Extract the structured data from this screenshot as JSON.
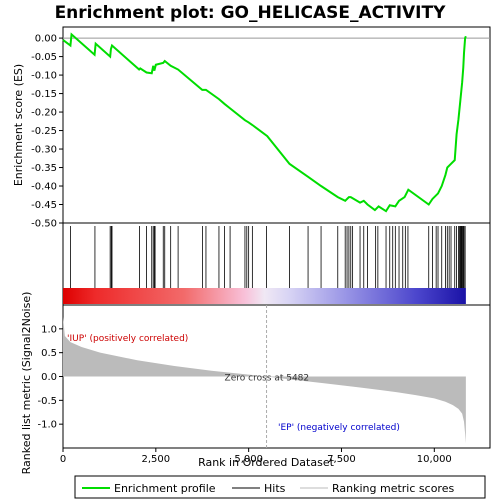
{
  "chart_data": {
    "type": "line",
    "title": "Enrichment plot: GO_HELICASE_ACTIVITY",
    "panels": {
      "enrichment": {
        "ylabel": "Enrichment score (ES)",
        "ylim": [
          -0.5,
          0.03
        ],
        "yticks": [
          0.0,
          -0.05,
          -0.1,
          -0.15,
          -0.2,
          -0.25,
          -0.3,
          -0.35,
          -0.4,
          -0.45,
          -0.5
        ],
        "ytick_labels": [
          "0.00",
          "-0.05",
          "-0.10",
          "-0.15",
          "-0.20",
          "-0.25",
          "-0.30",
          "-0.35",
          "-0.40",
          "-0.45",
          "-0.50"
        ],
        "series": [
          {
            "name": "Enrichment profile",
            "color": "#00dd00",
            "x": [
              0,
              200,
              230,
              850,
              880,
              1270,
              1290,
              1320,
              2050,
              2080,
              2250,
              2390,
              2430,
              2460,
              2500,
              2700,
              2740,
              2900,
              3100,
              3750,
              3850,
              4200,
              4350,
              4500,
              4900,
              4950,
              5000,
              5100,
              5500,
              6100,
              6600,
              6950,
              7400,
              7600,
              7700,
              7750,
              8000,
              8100,
              8200,
              8400,
              8500,
              8700,
              8800,
              8950,
              9050,
              9200,
              9300,
              9850,
              9950,
              10100,
              10200,
              10300,
              10350,
              10450,
              10550,
              10600,
              10650,
              10700,
              10750,
              10780,
              10800,
              10830,
              10850
            ],
            "y": [
              -0.005,
              -0.02,
              0.01,
              -0.045,
              -0.015,
              -0.05,
              -0.03,
              -0.02,
              -0.085,
              -0.082,
              -0.093,
              -0.095,
              -0.075,
              -0.088,
              -0.072,
              -0.067,
              -0.062,
              -0.075,
              -0.085,
              -0.14,
              -0.14,
              -0.165,
              -0.178,
              -0.19,
              -0.222,
              -0.225,
              -0.228,
              -0.235,
              -0.265,
              -0.34,
              -0.375,
              -0.4,
              -0.43,
              -0.44,
              -0.43,
              -0.43,
              -0.445,
              -0.44,
              -0.45,
              -0.465,
              -0.455,
              -0.468,
              -0.452,
              -0.455,
              -0.44,
              -0.43,
              -0.41,
              -0.45,
              -0.435,
              -0.42,
              -0.4,
              -0.37,
              -0.35,
              -0.34,
              -0.33,
              -0.26,
              -0.22,
              -0.17,
              -0.12,
              -0.08,
              -0.04,
              0.0,
              0.005
            ]
          }
        ]
      },
      "hits": {
        "label": "Hits",
        "positions": [
          200,
          860,
          1270,
          1300,
          1320,
          2060,
          2250,
          2390,
          2430,
          2460,
          2480,
          2700,
          2740,
          2900,
          3100,
          3760,
          3850,
          4200,
          4350,
          4500,
          4900,
          4950,
          5000,
          5100,
          5480,
          6100,
          6600,
          6950,
          7400,
          7600,
          7650,
          7700,
          7750,
          7800,
          8000,
          8100,
          8200,
          8420,
          8480,
          8700,
          8800,
          8880,
          8950,
          9050,
          9150,
          9220,
          9290,
          9850,
          9950,
          10050,
          10100,
          10200,
          10300,
          10350,
          10400,
          10450,
          10550,
          10600,
          10650,
          10680,
          10700,
          10720,
          10740,
          10760,
          10780,
          10800,
          10830
        ]
      },
      "ranking": {
        "ylabel": "Ranked list metric (Signal2Noise)",
        "xlabel": "Rank in Ordered Dataset",
        "ylim": [
          -1.5,
          1.5
        ],
        "yticks": [
          1.0,
          0.5,
          0.0,
          -0.5,
          -1.0
        ],
        "ytick_labels": [
          "1.0",
          "0.5",
          "0.0",
          "-0.5",
          "-1.0"
        ],
        "xlim": [
          0,
          11500
        ],
        "xticks": [
          0,
          2500,
          5000,
          7500,
          10000
        ],
        "xtick_labels": [
          "0",
          "2,500",
          "5,000",
          "7,500",
          "10,000"
        ],
        "total_rank": 10850,
        "zero_cross": 5482,
        "zero_cross_label": "Zero cross at 5482",
        "pos_label": "'IUP' (positively correlated)",
        "neg_label": "'EP' (negatively correlated)",
        "metric_x": [
          0,
          50,
          200,
          500,
          1000,
          2000,
          3000,
          4000,
          5000,
          5482,
          6000,
          7000,
          8000,
          9000,
          9500,
          10000,
          10300,
          10500,
          10650,
          10750,
          10800,
          10830,
          10850
        ],
        "metric_y": [
          1.25,
          0.85,
          0.72,
          0.62,
          0.5,
          0.34,
          0.22,
          0.12,
          0.04,
          0.0,
          -0.05,
          -0.14,
          -0.23,
          -0.33,
          -0.39,
          -0.46,
          -0.53,
          -0.6,
          -0.68,
          -0.78,
          -0.95,
          -1.2,
          -1.4
        ]
      }
    },
    "legend": {
      "placement": "bottom",
      "items": [
        {
          "label": "Enrichment profile",
          "color": "#00dd00"
        },
        {
          "label": "Hits",
          "color": "#000000"
        },
        {
          "label": "Ranking metric scores",
          "color": "#bbbbbb"
        }
      ]
    },
    "colors": {
      "profile": "#00dd00",
      "pos_label": "#cc0000",
      "neg_label": "#0000cc",
      "metric_fill": "#bbbbbb",
      "zero_line": "#bbbbbb"
    }
  }
}
